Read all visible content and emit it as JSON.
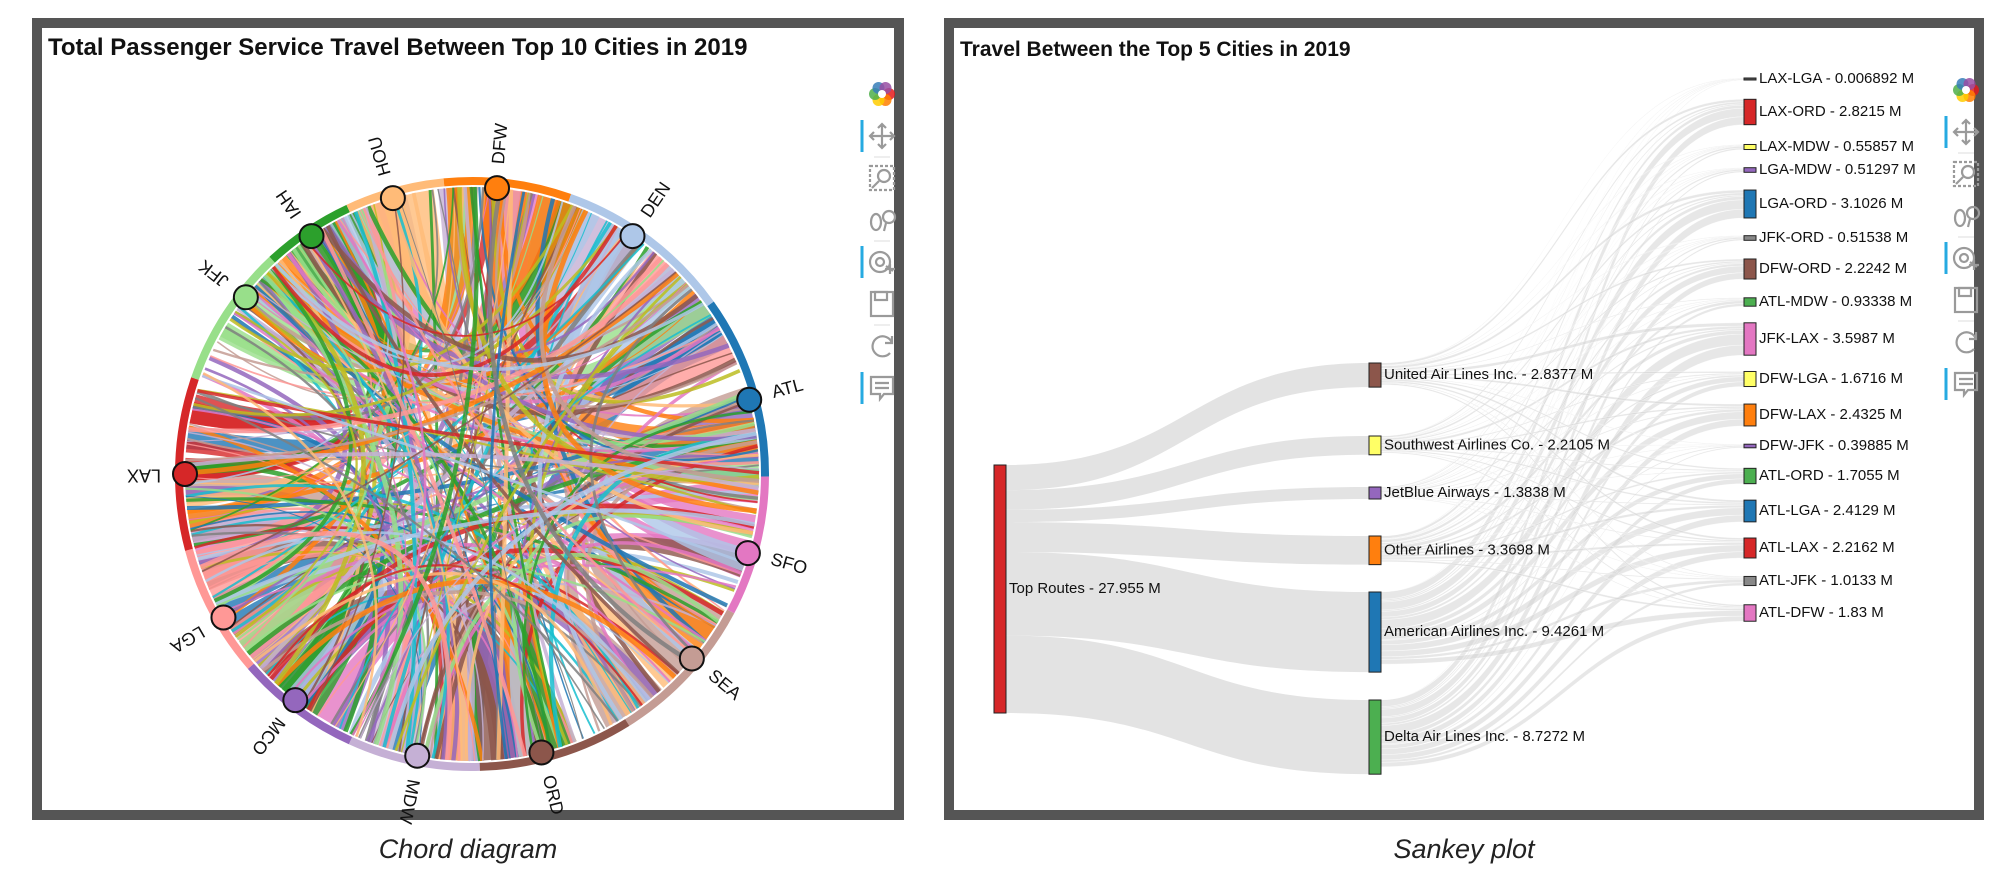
{
  "chord_panel": {
    "title": "Total Passenger Service Travel Between Top 10 Cities in 2019",
    "caption": "Chord diagram"
  },
  "sankey_panel": {
    "title": "Travel Between the Top 5 Cities in 2019",
    "caption": "Sankey plot"
  },
  "toolbar": {
    "chord_tools": [
      "logo-icon",
      "pan-icon",
      "box-zoom-icon",
      "wheel-zoom-icon",
      "tap-icon",
      "save-icon",
      "reset-icon",
      "hover-icon"
    ],
    "sankey_tools": [
      "logo-icon",
      "pan-icon",
      "box-zoom-icon",
      "wheel-zoom-icon",
      "tap-icon",
      "save-icon",
      "reset-icon",
      "hover-icon"
    ]
  },
  "chart_data": [
    {
      "type": "chord",
      "title": "Total Passenger Service Travel Between Top 10 Cities in 2019",
      "nodes": [
        {
          "name": "ATL",
          "color": "#1f77b4"
        },
        {
          "name": "SFO",
          "color": "#e377c2"
        },
        {
          "name": "SEA",
          "color": "#c49c94"
        },
        {
          "name": "ORD",
          "color": "#8c564b"
        },
        {
          "name": "MDW",
          "color": "#c5b0d5"
        },
        {
          "name": "MCO",
          "color": "#9467bd"
        },
        {
          "name": "LGA",
          "color": "#ff9896"
        },
        {
          "name": "LAX",
          "color": "#d62728"
        },
        {
          "name": "JFK",
          "color": "#98df8a"
        },
        {
          "name": "IAH",
          "color": "#2ca02c"
        },
        {
          "name": "HOU",
          "color": "#ffbb78"
        },
        {
          "name": "DFW",
          "color": "#ff7f0e"
        },
        {
          "name": "DEN",
          "color": "#aec7e8"
        }
      ],
      "extra_colors": [
        "#bcbd22",
        "#17becf",
        "#7f7f7f"
      ]
    },
    {
      "type": "sankey",
      "title": "Travel Between the Top 5 Cities in 2019",
      "unit": "M",
      "nodes": [
        {
          "id": "top",
          "label": "Top Routes - 27.955 M",
          "value": 27.955,
          "column": 0,
          "color": "#d62728"
        },
        {
          "id": "ua",
          "label": "United Air Lines Inc. - 2.8377 M",
          "value": 2.8377,
          "column": 1,
          "color": "#8c564b"
        },
        {
          "id": "wn",
          "label": "Southwest Airlines Co. - 2.2105 M",
          "value": 2.2105,
          "column": 1,
          "color": "#ffff66"
        },
        {
          "id": "b6",
          "label": "JetBlue Airways - 1.3838 M",
          "value": 1.3838,
          "column": 1,
          "color": "#9467bd"
        },
        {
          "id": "oo",
          "label": "Other Airlines - 3.3698 M",
          "value": 3.3698,
          "column": 1,
          "color": "#ff7f0e"
        },
        {
          "id": "aa",
          "label": "American Airlines Inc. - 9.4261 M",
          "value": 9.4261,
          "column": 1,
          "color": "#1f77b4"
        },
        {
          "id": "dl",
          "label": "Delta Air Lines Inc. - 8.7272 M",
          "value": 8.7272,
          "column": 1,
          "color": "#4caf50"
        },
        {
          "id": "r1",
          "label": "LAX-LGA - 0.006892 M",
          "value": 0.006892,
          "column": 2,
          "color": "#555555"
        },
        {
          "id": "r2",
          "label": "LAX-ORD - 2.8215 M",
          "value": 2.8215,
          "column": 2,
          "color": "#d62728"
        },
        {
          "id": "r3",
          "label": "LAX-MDW - 0.55857 M",
          "value": 0.55857,
          "column": 2,
          "color": "#ffff66"
        },
        {
          "id": "r4",
          "label": "LGA-MDW - 0.51297 M",
          "value": 0.51297,
          "column": 2,
          "color": "#9467bd"
        },
        {
          "id": "r5",
          "label": "LGA-ORD - 3.1026 M",
          "value": 3.1026,
          "column": 2,
          "color": "#1f77b4"
        },
        {
          "id": "r6",
          "label": "JFK-ORD - 0.51538 M",
          "value": 0.51538,
          "column": 2,
          "color": "#888888"
        },
        {
          "id": "r7",
          "label": "DFW-ORD - 2.2242 M",
          "value": 2.2242,
          "column": 2,
          "color": "#8c564b"
        },
        {
          "id": "r8",
          "label": "ATL-MDW - 0.93338 M",
          "value": 0.93338,
          "column": 2,
          "color": "#4caf50"
        },
        {
          "id": "r9",
          "label": "JFK-LAX - 3.5987 M",
          "value": 3.5987,
          "column": 2,
          "color": "#e377c2"
        },
        {
          "id": "r10",
          "label": "DFW-LGA - 1.6716 M",
          "value": 1.6716,
          "column": 2,
          "color": "#ffff66"
        },
        {
          "id": "r11",
          "label": "DFW-LAX - 2.4325 M",
          "value": 2.4325,
          "column": 2,
          "color": "#ff7f0e"
        },
        {
          "id": "r12",
          "label": "DFW-JFK - 0.39885 M",
          "value": 0.39885,
          "column": 2,
          "color": "#9467bd"
        },
        {
          "id": "r13",
          "label": "ATL-ORD - 1.7055 M",
          "value": 1.7055,
          "column": 2,
          "color": "#4caf50"
        },
        {
          "id": "r14",
          "label": "ATL-LGA - 2.4129 M",
          "value": 2.4129,
          "column": 2,
          "color": "#1f77b4"
        },
        {
          "id": "r15",
          "label": "ATL-LAX - 2.2162 M",
          "value": 2.2162,
          "column": 2,
          "color": "#d62728"
        },
        {
          "id": "r16",
          "label": "ATL-JFK - 1.0133 M",
          "value": 1.0133,
          "column": 2,
          "color": "#888888"
        },
        {
          "id": "r17",
          "label": "ATL-DFW - 1.83 M",
          "value": 1.83,
          "column": 2,
          "color": "#e377c2"
        }
      ],
      "links": [
        {
          "source": "top",
          "target": "ua",
          "value": 2.8377
        },
        {
          "source": "top",
          "target": "wn",
          "value": 2.2105
        },
        {
          "source": "top",
          "target": "b6",
          "value": 1.3838
        },
        {
          "source": "top",
          "target": "oo",
          "value": 3.3698
        },
        {
          "source": "top",
          "target": "aa",
          "value": 9.4261
        },
        {
          "source": "top",
          "target": "dl",
          "value": 8.7272
        }
      ]
    }
  ]
}
